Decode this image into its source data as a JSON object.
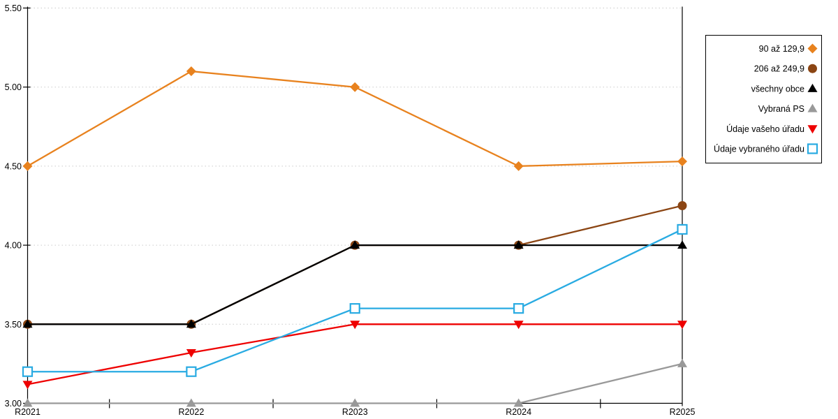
{
  "chart_data": {
    "type": "line",
    "title": "",
    "categories": [
      "R2021",
      "R2022",
      "R2023",
      "R2024",
      "R2025"
    ],
    "series": [
      {
        "name": "90 až 129,9",
        "marker": "diamond",
        "color": "#E8821E",
        "values": [
          4.5,
          5.1,
          5.0,
          4.5,
          4.53
        ]
      },
      {
        "name": "206 až 249,9",
        "marker": "circle",
        "color": "#8B4513",
        "values": [
          3.5,
          3.5,
          4.0,
          4.0,
          4.25
        ]
      },
      {
        "name": "všechny obce",
        "marker": "triangle-up",
        "color": "#000000",
        "values": [
          3.5,
          3.5,
          4.0,
          4.0,
          4.0
        ]
      },
      {
        "name": "Vybraná PS",
        "marker": "triangle-up",
        "color": "#999999",
        "values": [
          3.0,
          3.0,
          3.0,
          3.0,
          3.25
        ]
      },
      {
        "name": "Údaje vašeho úřadu",
        "marker": "triangle-down",
        "color": "#EE0000",
        "values": [
          3.12,
          3.32,
          3.5,
          3.5,
          3.5
        ]
      },
      {
        "name": "Údaje vybraného úřadu",
        "marker": "square-open",
        "color": "#29ABE2",
        "values": [
          3.2,
          3.2,
          3.6,
          3.6,
          4.1
        ]
      }
    ],
    "xlabel": "",
    "ylabel": "",
    "ylim": [
      3.0,
      5.5
    ],
    "yticks": {
      "values": [
        3.0,
        3.5,
        4.0,
        4.5,
        5.0,
        5.5
      ],
      "labels": [
        "3.00",
        "3.50",
        "4.00",
        "4.50",
        "5.00",
        "5.50"
      ]
    },
    "grid": "horizontal-dotted",
    "gridline_color": "#C9C9C9",
    "axis_color": "#000000",
    "background": "#FFFFFF",
    "legend": {
      "position": "right",
      "border": true,
      "entries": [
        "90 až 129,9",
        "206 až 249,9",
        "všechny obce",
        "Vybraná PS",
        "Údaje vašeho úřadu",
        "Údaje vybraného úřadu"
      ]
    }
  }
}
